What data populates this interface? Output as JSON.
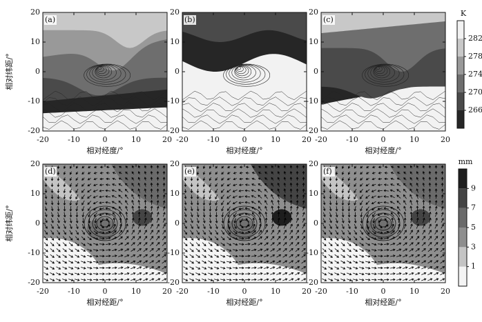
{
  "chart_data": [
    {
      "type": "contour",
      "label": "(a)",
      "xlabel": "相对经度/°",
      "ylabel": "相对纬距/°",
      "xlim": [
        -20,
        20
      ],
      "ylim": [
        -20,
        20
      ],
      "xticks": [
        -20,
        -10,
        0,
        10,
        20
      ],
      "yticks": [
        -20,
        -10,
        0,
        10,
        20
      ],
      "colorbar": 0
    },
    {
      "type": "contour",
      "label": "(b)",
      "xlabel": "相对经度/°",
      "xlim": [
        -20,
        20
      ],
      "ylim": [
        -20,
        20
      ],
      "xticks": [
        -20,
        -10,
        0,
        10,
        20
      ],
      "yticks": [
        -20,
        -10,
        0,
        10,
        20
      ],
      "colorbar": 0
    },
    {
      "type": "contour",
      "label": "(c)",
      "xlabel": "相对经度/°",
      "xlim": [
        -20,
        20
      ],
      "ylim": [
        -20,
        20
      ],
      "xticks": [
        -20,
        -10,
        0,
        10,
        20
      ],
      "yticks": [
        -20,
        -10,
        0,
        10,
        20
      ],
      "colorbar": 0
    },
    {
      "type": "vector",
      "label": "(d)",
      "xlabel": "相对经距/°",
      "ylabel": "相对纬距/°",
      "xlim": [
        -20,
        20
      ],
      "ylim": [
        -20,
        20
      ],
      "xticks": [
        -20,
        -10,
        0,
        10,
        20
      ],
      "yticks": [
        -20,
        -10,
        0,
        10,
        20
      ],
      "colorbar": 1
    },
    {
      "type": "vector",
      "label": "(e)",
      "xlabel": "相对经距/°",
      "xlim": [
        -20,
        20
      ],
      "ylim": [
        -20,
        20
      ],
      "xticks": [
        -20,
        -10,
        0,
        10,
        20
      ],
      "yticks": [
        -20,
        -10,
        0,
        10,
        20
      ],
      "colorbar": 1
    },
    {
      "type": "vector",
      "label": "(f)",
      "xlabel": "相对经距/°",
      "xlim": [
        -20,
        20
      ],
      "ylim": [
        -20,
        20
      ],
      "xticks": [
        -20,
        -10,
        0,
        10,
        20
      ],
      "yticks": [
        -20,
        -10,
        0,
        10,
        20
      ],
      "colorbar": 1
    }
  ],
  "colorbars": [
    {
      "unit": "K",
      "lim": [
        262,
        286
      ],
      "ticks": [
        266,
        270,
        274,
        278,
        282
      ],
      "colors": [
        "#262626",
        "#4a4a4a",
        "#6e6e6e",
        "#999999",
        "#c8c8c8",
        "#f2f2f2"
      ]
    },
    {
      "unit": "mm",
      "lim": [
        -1,
        11
      ],
      "ticks": [
        1,
        3,
        5,
        7,
        9
      ],
      "colors": [
        "#f4f4f4",
        "#c4c4c4",
        "#8e8e8e",
        "#6a6a6a",
        "#444444",
        "#1e1e1e"
      ]
    }
  ]
}
